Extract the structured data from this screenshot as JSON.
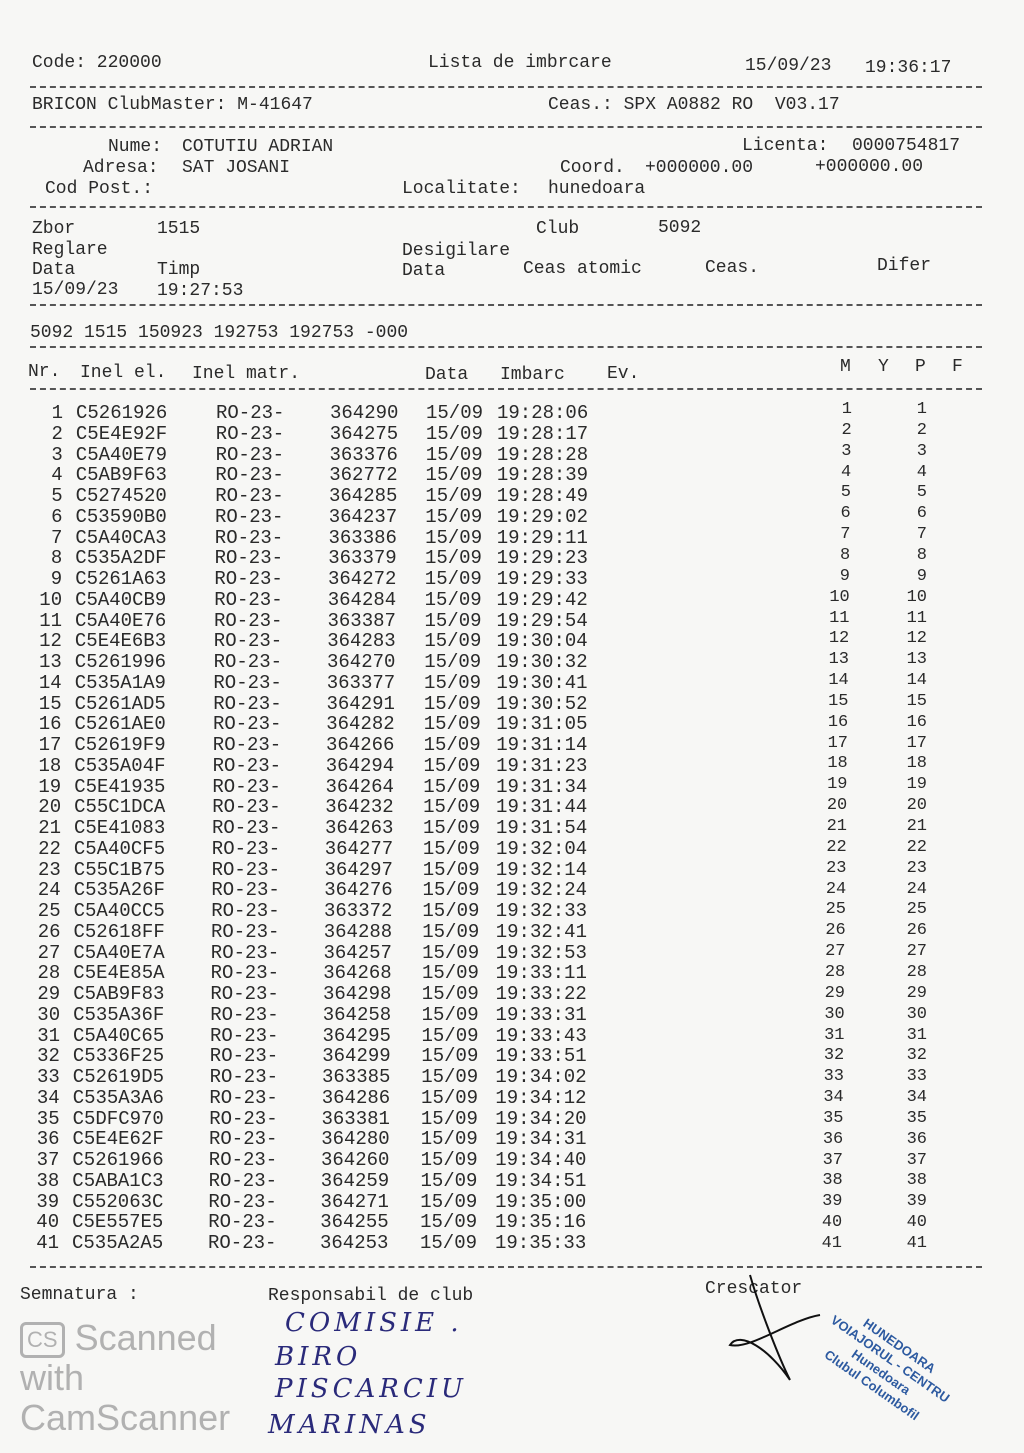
{
  "header": {
    "code": "Code: 220000",
    "title": "Lista de imbrcare",
    "printed_date": "15/09/23",
    "printed_time": "19:36:17",
    "device": "BRICON ClubMaster: M-41647",
    "clock": "Ceas.: SPX A0882 RO  V03.17"
  },
  "owner": {
    "name_label": "Nume:",
    "name": "COTUTIU ADRIAN",
    "license_label": "Licenta:",
    "license": "0000754817",
    "address_label": "Adresa:",
    "address": "SAT JOSANI",
    "coord_label": "Coord.",
    "coord_1": "+000000.00",
    "coord_2": "+000000.00",
    "postal_label": "Cod Post.:",
    "city_label": "Localitate:",
    "city": "hunedoara"
  },
  "flight": {
    "zbor_label": "Zbor",
    "zbor": "1515",
    "club_label": "Club",
    "club": "5092",
    "reglare_label": "Reglare",
    "desigilare_label": "Desigilare",
    "data_label": "Data",
    "timp_label": "Timp",
    "data2_label": "Data",
    "ceas_atomic_label": "Ceas atomic",
    "ceas_label": "Ceas.",
    "difer_label": "Difer",
    "reglare_date": "15/09/23",
    "reglare_time": "19:27:53",
    "summary_line": "5092 1515 150923 192753 192753 -000"
  },
  "table": {
    "headers": {
      "nr": "Nr.",
      "inel_el": "Inel el.",
      "inel_matr": "Inel matr.",
      "data": "Data",
      "imbarc": "Imbarc",
      "ev": "Ev.",
      "m": "M",
      "y": "Y",
      "p": "P",
      "f": "F"
    },
    "rows": [
      [
        "1",
        "C5261926",
        "RO-23-",
        "364290",
        "15/09",
        "19:28:06",
        "1",
        "1"
      ],
      [
        "2",
        "C5E4E92F",
        "RO-23-",
        "364275",
        "15/09",
        "19:28:17",
        "2",
        "2"
      ],
      [
        "3",
        "C5A40E79",
        "RO-23-",
        "363376",
        "15/09",
        "19:28:28",
        "3",
        "3"
      ],
      [
        "4",
        "C5AB9F63",
        "RO-23-",
        "362772",
        "15/09",
        "19:28:39",
        "4",
        "4"
      ],
      [
        "5",
        "C5274520",
        "RO-23-",
        "364285",
        "15/09",
        "19:28:49",
        "5",
        "5"
      ],
      [
        "6",
        "C53590B0",
        "RO-23-",
        "364237",
        "15/09",
        "19:29:02",
        "6",
        "6"
      ],
      [
        "7",
        "C5A40CA3",
        "RO-23-",
        "363386",
        "15/09",
        "19:29:11",
        "7",
        "7"
      ],
      [
        "8",
        "C535A2DF",
        "RO-23-",
        "363379",
        "15/09",
        "19:29:23",
        "8",
        "8"
      ],
      [
        "9",
        "C5261A63",
        "RO-23-",
        "364272",
        "15/09",
        "19:29:33",
        "9",
        "9"
      ],
      [
        "10",
        "C5A40CB9",
        "RO-23-",
        "364284",
        "15/09",
        "19:29:42",
        "10",
        "10"
      ],
      [
        "11",
        "C5A40E76",
        "RO-23-",
        "363387",
        "15/09",
        "19:29:54",
        "11",
        "11"
      ],
      [
        "12",
        "C5E4E6B3",
        "RO-23-",
        "364283",
        "15/09",
        "19:30:04",
        "12",
        "12"
      ],
      [
        "13",
        "C5261996",
        "RO-23-",
        "364270",
        "15/09",
        "19:30:32",
        "13",
        "13"
      ],
      [
        "14",
        "C535A1A9",
        "RO-23-",
        "363377",
        "15/09",
        "19:30:41",
        "14",
        "14"
      ],
      [
        "15",
        "C5261AD5",
        "RO-23-",
        "364291",
        "15/09",
        "19:30:52",
        "15",
        "15"
      ],
      [
        "16",
        "C5261AE0",
        "RO-23-",
        "364282",
        "15/09",
        "19:31:05",
        "16",
        "16"
      ],
      [
        "17",
        "C52619F9",
        "RO-23-",
        "364266",
        "15/09",
        "19:31:14",
        "17",
        "17"
      ],
      [
        "18",
        "C535A04F",
        "RO-23-",
        "364294",
        "15/09",
        "19:31:23",
        "18",
        "18"
      ],
      [
        "19",
        "C5E41935",
        "RO-23-",
        "364264",
        "15/09",
        "19:31:34",
        "19",
        "19"
      ],
      [
        "20",
        "C55C1DCA",
        "RO-23-",
        "364232",
        "15/09",
        "19:31:44",
        "20",
        "20"
      ],
      [
        "21",
        "C5E41083",
        "RO-23-",
        "364263",
        "15/09",
        "19:31:54",
        "21",
        "21"
      ],
      [
        "22",
        "C5A40CF5",
        "RO-23-",
        "364277",
        "15/09",
        "19:32:04",
        "22",
        "22"
      ],
      [
        "23",
        "C55C1B75",
        "RO-23-",
        "364297",
        "15/09",
        "19:32:14",
        "23",
        "23"
      ],
      [
        "24",
        "C535A26F",
        "RO-23-",
        "364276",
        "15/09",
        "19:32:24",
        "24",
        "24"
      ],
      [
        "25",
        "C5A40CC5",
        "RO-23-",
        "363372",
        "15/09",
        "19:32:33",
        "25",
        "25"
      ],
      [
        "26",
        "C52618FF",
        "RO-23-",
        "364288",
        "15/09",
        "19:32:41",
        "26",
        "26"
      ],
      [
        "27",
        "C5A40E7A",
        "RO-23-",
        "364257",
        "15/09",
        "19:32:53",
        "27",
        "27"
      ],
      [
        "28",
        "C5E4E85A",
        "RO-23-",
        "364268",
        "15/09",
        "19:33:11",
        "28",
        "28"
      ],
      [
        "29",
        "C5AB9F83",
        "RO-23-",
        "364298",
        "15/09",
        "19:33:22",
        "29",
        "29"
      ],
      [
        "30",
        "C535A36F",
        "RO-23-",
        "364258",
        "15/09",
        "19:33:31",
        "30",
        "30"
      ],
      [
        "31",
        "C5A40C65",
        "RO-23-",
        "364295",
        "15/09",
        "19:33:43",
        "31",
        "31"
      ],
      [
        "32",
        "C5336F25",
        "RO-23-",
        "364299",
        "15/09",
        "19:33:51",
        "32",
        "32"
      ],
      [
        "33",
        "C52619D5",
        "RO-23-",
        "363385",
        "15/09",
        "19:34:02",
        "33",
        "33"
      ],
      [
        "34",
        "C535A3A6",
        "RO-23-",
        "364286",
        "15/09",
        "19:34:12",
        "34",
        "34"
      ],
      [
        "35",
        "C5DFC970",
        "RO-23-",
        "363381",
        "15/09",
        "19:34:20",
        "35",
        "35"
      ],
      [
        "36",
        "C5E4E62F",
        "RO-23-",
        "364280",
        "15/09",
        "19:34:31",
        "36",
        "36"
      ],
      [
        "37",
        "C5261966",
        "RO-23-",
        "364260",
        "15/09",
        "19:34:40",
        "37",
        "37"
      ],
      [
        "38",
        "C5ABA1C3",
        "RO-23-",
        "364259",
        "15/09",
        "19:34:51",
        "38",
        "38"
      ],
      [
        "39",
        "C552063C",
        "RO-23-",
        "364271",
        "15/09",
        "19:35:00",
        "39",
        "39"
      ],
      [
        "40",
        "C5E557E5",
        "RO-23-",
        "364255",
        "15/09",
        "19:35:16",
        "40",
        "40"
      ],
      [
        "41",
        "C535A2A5",
        "RO-23-",
        "364253",
        "15/09",
        "19:35:33",
        "41",
        "41"
      ]
    ]
  },
  "footer": {
    "signature_label": "Semnatura :",
    "club_resp_label": "Responsabil de club",
    "breeder_label": "Crescator",
    "handwriting": [
      "COMISIE .",
      "BIRO",
      "PISCARCIU",
      "MARINAS"
    ],
    "stamp_text": [
      "Clubul Columbofil",
      "VOIAJORUL - CENTRU",
      "HUNEDOARA",
      "Hunedoara"
    ],
    "watermark": {
      "logo": "CS",
      "text": "Scanned with CamScanner"
    }
  }
}
